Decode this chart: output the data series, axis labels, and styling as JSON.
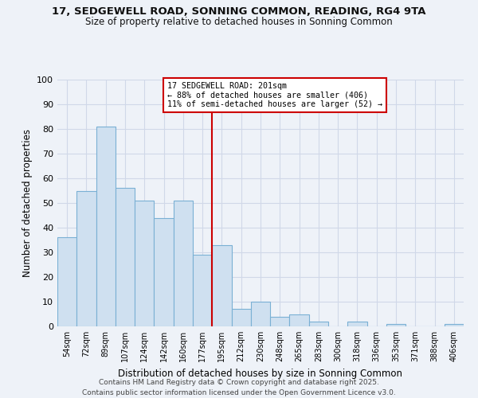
{
  "title_line1": "17, SEDGEWELL ROAD, SONNING COMMON, READING, RG4 9TA",
  "title_line2": "Size of property relative to detached houses in Sonning Common",
  "xlabel": "Distribution of detached houses by size in Sonning Common",
  "ylabel": "Number of detached properties",
  "categories": [
    "54sqm",
    "72sqm",
    "89sqm",
    "107sqm",
    "124sqm",
    "142sqm",
    "160sqm",
    "177sqm",
    "195sqm",
    "212sqm",
    "230sqm",
    "248sqm",
    "265sqm",
    "283sqm",
    "300sqm",
    "318sqm",
    "336sqm",
    "353sqm",
    "371sqm",
    "388sqm",
    "406sqm"
  ],
  "values": [
    36,
    55,
    81,
    56,
    51,
    44,
    51,
    29,
    33,
    7,
    10,
    4,
    5,
    2,
    0,
    2,
    0,
    1,
    0,
    0,
    1
  ],
  "bar_color": "#cfe0f0",
  "bar_edge_color": "#7ab0d4",
  "vline_color": "#cc0000",
  "vline_x_index": 8,
  "annotation_title": "17 SEDGEWELL ROAD: 201sqm",
  "annotation_line2": "← 88% of detached houses are smaller (406)",
  "annotation_line3": "11% of semi-detached houses are larger (52) →",
  "ylim": [
    0,
    100
  ],
  "yticks": [
    0,
    10,
    20,
    30,
    40,
    50,
    60,
    70,
    80,
    90,
    100
  ],
  "background_color": "#eef2f8",
  "grid_color": "#d0d8e8",
  "footer_line1": "Contains HM Land Registry data © Crown copyright and database right 2025.",
  "footer_line2": "Contains public sector information licensed under the Open Government Licence v3.0."
}
